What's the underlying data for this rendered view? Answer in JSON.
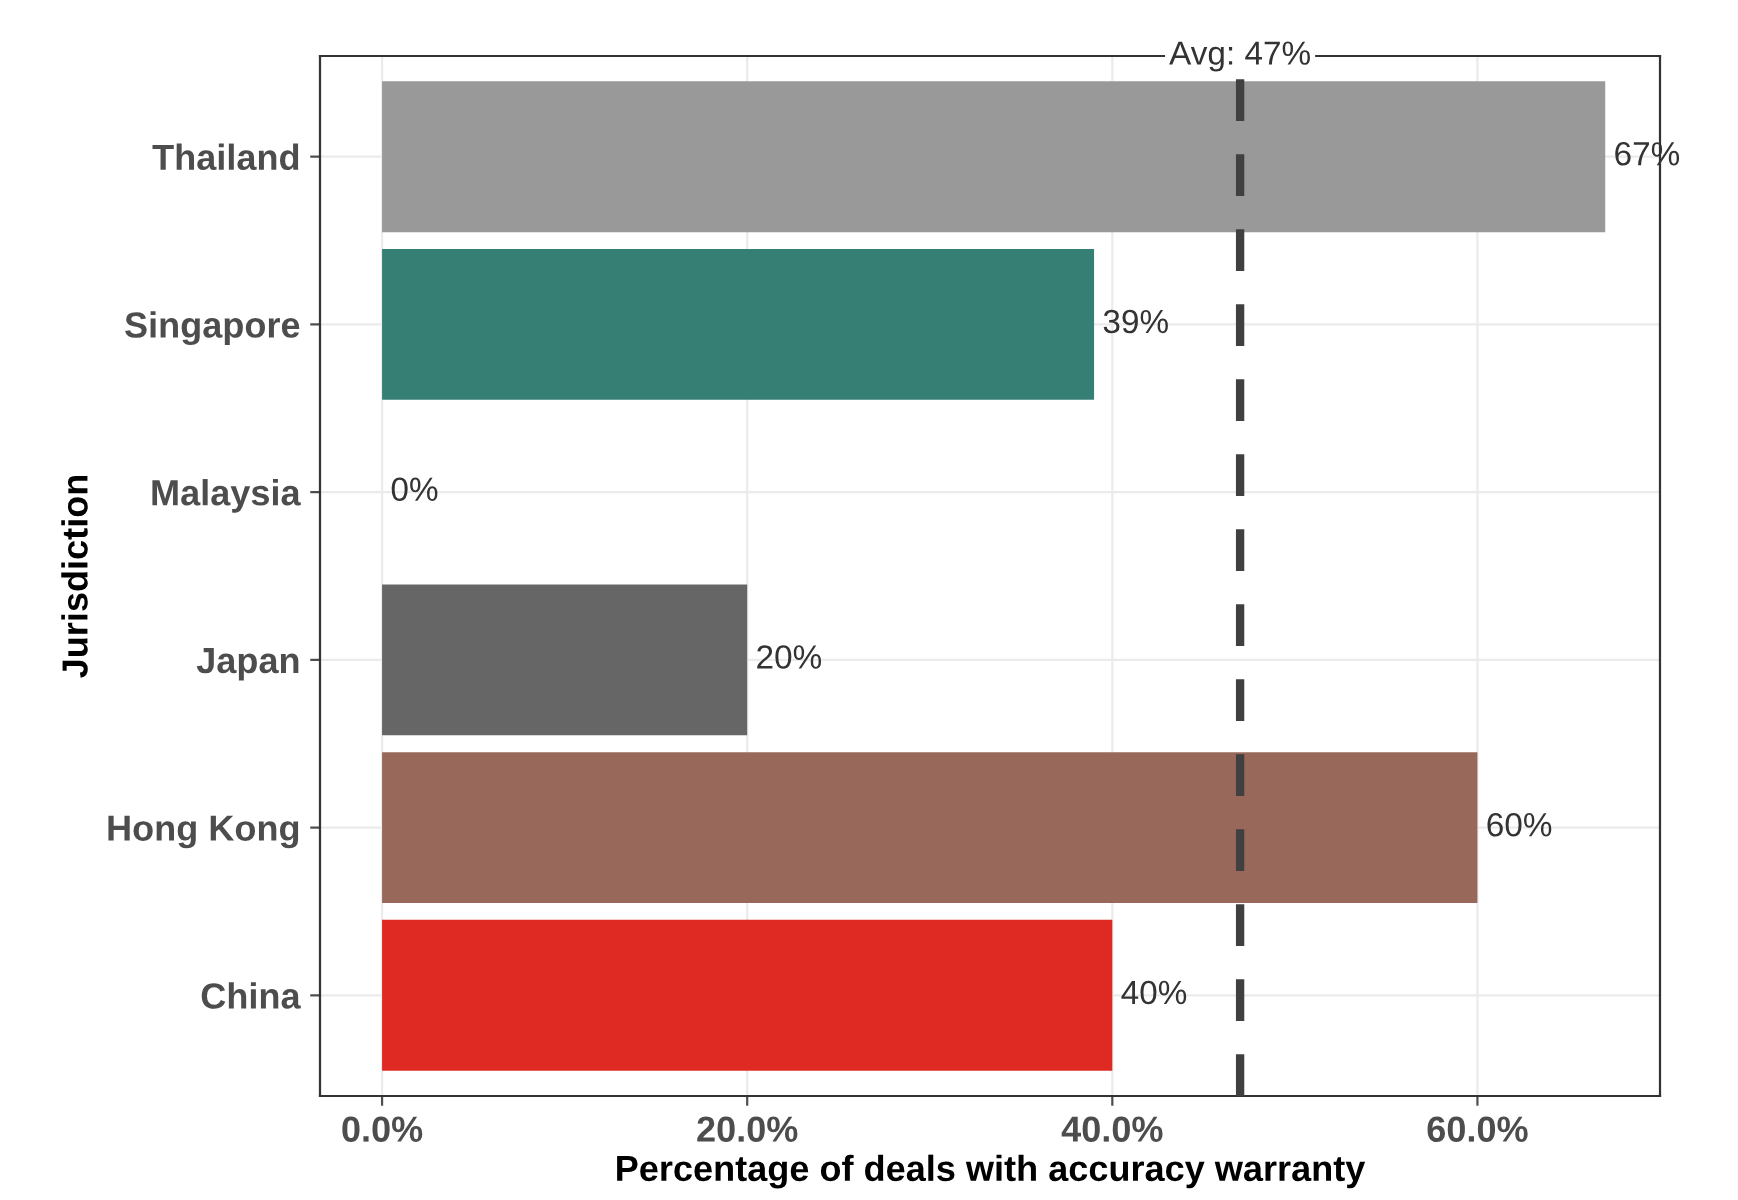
{
  "chart_data": {
    "type": "bar",
    "orientation": "horizontal",
    "xlabel": "Percentage of deals with accuracy warranty",
    "ylabel": "Jurisdiction",
    "categories": [
      "Thailand",
      "Singapore",
      "Malaysia",
      "Japan",
      "Hong Kong",
      "China"
    ],
    "values": [
      67,
      39,
      0,
      20,
      60,
      40
    ],
    "colors": [
      "#999999",
      "#367f74",
      "#999999",
      "#666666",
      "#98695a",
      "#de2a22"
    ],
    "value_labels": [
      "67%",
      "39%",
      "0%",
      "20%",
      "60%",
      "40%"
    ],
    "xlim": [
      -3.4,
      70
    ],
    "xticks": [
      {
        "value": 0,
        "label": "0.0%"
      },
      {
        "value": 20,
        "label": "20.0%"
      },
      {
        "value": 40,
        "label": "40.0%"
      },
      {
        "value": 60,
        "label": "60.0%"
      }
    ],
    "ref_lines": [
      {
        "axis": "x",
        "value": 47,
        "label": "Avg: 47%",
        "color": "#404040",
        "line_style": "dashed"
      }
    ],
    "grid": true
  }
}
